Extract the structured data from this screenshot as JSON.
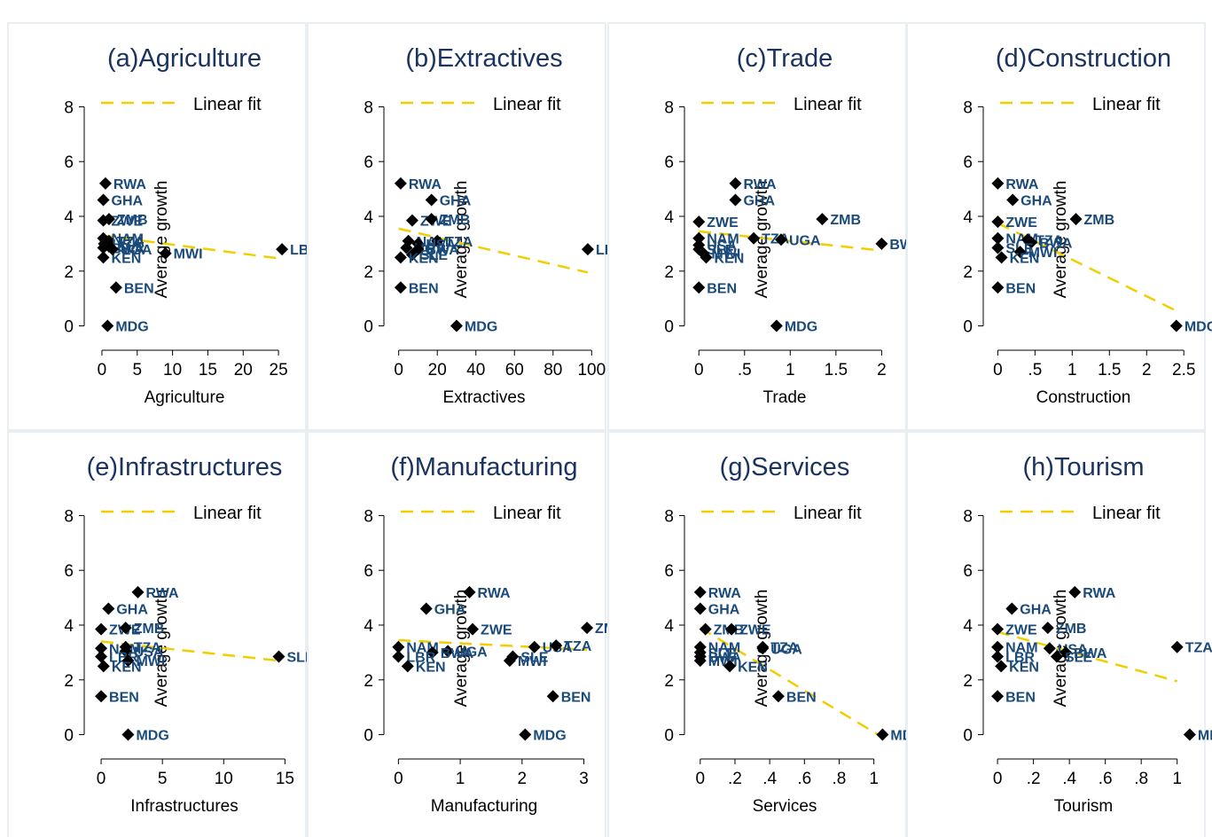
{
  "colors": {
    "marker": "#000000",
    "label": "#1a4a7a",
    "title": "#1a3360",
    "fit": "#f2cd00"
  },
  "chart_data": [
    {
      "type": "scatter",
      "title": "(a)Agriculture",
      "xlabel": "Agriculture",
      "ylabel": "Average growth",
      "xlim": [
        -1.5,
        28
      ],
      "ylim": [
        -0.5,
        8.5
      ],
      "xticks": [
        0,
        5,
        10,
        15,
        20,
        25
      ],
      "xtick_labels": [
        "0",
        "5",
        "10",
        "15",
        "20",
        "25"
      ],
      "yticks": [
        0,
        2,
        4,
        6,
        8
      ],
      "ytick_labels": [
        "0",
        "2",
        "4",
        "6",
        "8"
      ],
      "legend": "Linear fit",
      "fit": [
        [
          0,
          3.3
        ],
        [
          25.5,
          2.45
        ]
      ],
      "points": [
        {
          "x": 0.5,
          "y": 5.2,
          "label": "RWA"
        },
        {
          "x": 0.2,
          "y": 4.6,
          "label": "GHA"
        },
        {
          "x": 0.2,
          "y": 3.85,
          "label": "ZWE"
        },
        {
          "x": 1.0,
          "y": 3.9,
          "label": "ZMB"
        },
        {
          "x": 0.2,
          "y": 3.2,
          "label": "NAM"
        },
        {
          "x": 1.0,
          "y": 3.1,
          "label": "TZA"
        },
        {
          "x": 0.3,
          "y": 3.0,
          "label": "USA"
        },
        {
          "x": 1.0,
          "y": 2.9,
          "label": "SLE"
        },
        {
          "x": 0.2,
          "y": 2.85,
          "label": "BWA"
        },
        {
          "x": 0.2,
          "y": 2.5,
          "label": "KEN"
        },
        {
          "x": 1.5,
          "y": 2.8,
          "label": "UGA"
        },
        {
          "x": 9.0,
          "y": 2.65,
          "label": "MWI"
        },
        {
          "x": 2.0,
          "y": 1.4,
          "label": "BEN"
        },
        {
          "x": 0.8,
          "y": 0.0,
          "label": "MDG"
        },
        {
          "x": 25.5,
          "y": 2.8,
          "label": "LBR"
        }
      ]
    },
    {
      "type": "scatter",
      "title": "(b)Extractives",
      "xlabel": "Extractives",
      "ylabel": "Average growth",
      "xlim": [
        -4,
        104
      ],
      "ylim": [
        -0.5,
        8.5
      ],
      "xticks": [
        0,
        20,
        40,
        60,
        80,
        100
      ],
      "xtick_labels": [
        "0",
        "20",
        "40",
        "60",
        "80",
        "100"
      ],
      "yticks": [
        0,
        2,
        4,
        6,
        8
      ],
      "ytick_labels": [
        "0",
        "2",
        "4",
        "6",
        "8"
      ],
      "legend": "Linear fit",
      "fit": [
        [
          0,
          3.55
        ],
        [
          98,
          1.95
        ]
      ],
      "points": [
        {
          "x": 1.0,
          "y": 5.2,
          "label": "RWA"
        },
        {
          "x": 17,
          "y": 4.6,
          "label": "GHA"
        },
        {
          "x": 7,
          "y": 3.85,
          "label": "ZWE"
        },
        {
          "x": 17,
          "y": 3.9,
          "label": "ZMB"
        },
        {
          "x": 5,
          "y": 3.1,
          "label": "NAM"
        },
        {
          "x": 20,
          "y": 3.1,
          "label": "TZA"
        },
        {
          "x": 10,
          "y": 3.0,
          "label": "USA"
        },
        {
          "x": 4,
          "y": 2.85,
          "label": "UGA"
        },
        {
          "x": 10,
          "y": 2.8,
          "label": "BWA"
        },
        {
          "x": 7,
          "y": 2.6,
          "label": "SLE"
        },
        {
          "x": 1.0,
          "y": 2.5,
          "label": "KEN"
        },
        {
          "x": 1.0,
          "y": 1.4,
          "label": "BEN"
        },
        {
          "x": 30,
          "y": 0.0,
          "label": "MDG"
        },
        {
          "x": 98,
          "y": 2.8,
          "label": "LBR"
        }
      ]
    },
    {
      "type": "scatter",
      "title": "(c)Trade",
      "xlabel": "Trade",
      "ylabel": "Average growth",
      "xlim": [
        -0.08,
        2.2
      ],
      "ylim": [
        -0.5,
        8.5
      ],
      "xticks": [
        0,
        0.5,
        1,
        1.5,
        2
      ],
      "xtick_labels": [
        "0",
        ".5",
        "1",
        "1.5",
        "2"
      ],
      "yticks": [
        0,
        2,
        4,
        6,
        8
      ],
      "ytick_labels": [
        "0",
        "2",
        "4",
        "6",
        "8"
      ],
      "legend": "Linear fit",
      "fit": [
        [
          0,
          3.45
        ],
        [
          2,
          2.75
        ]
      ],
      "points": [
        {
          "x": 0.4,
          "y": 5.2,
          "label": "RWA"
        },
        {
          "x": 0.4,
          "y": 4.6,
          "label": "GHA"
        },
        {
          "x": 0.0,
          "y": 3.8,
          "label": "ZWE"
        },
        {
          "x": 1.35,
          "y": 3.9,
          "label": "ZMB"
        },
        {
          "x": 0.0,
          "y": 3.2,
          "label": "NAM"
        },
        {
          "x": 0.0,
          "y": 2.95,
          "label": "USA"
        },
        {
          "x": 0.0,
          "y": 2.8,
          "label": "SLE"
        },
        {
          "x": 0.05,
          "y": 2.65,
          "label": "MWI"
        },
        {
          "x": 0.08,
          "y": 2.5,
          "label": "KEN"
        },
        {
          "x": 0.6,
          "y": 3.2,
          "label": "TZA"
        },
        {
          "x": 0.9,
          "y": 3.15,
          "label": "UGA"
        },
        {
          "x": 2.0,
          "y": 3.0,
          "label": "BWA"
        },
        {
          "x": 0.0,
          "y": 1.4,
          "label": "BEN"
        },
        {
          "x": 0.85,
          "y": 0.0,
          "label": "MDG"
        }
      ]
    },
    {
      "type": "scatter",
      "title": "(d)Construction",
      "xlabel": "Construction",
      "ylabel": "Average growth",
      "xlim": [
        -0.1,
        2.7
      ],
      "ylim": [
        -0.5,
        8.5
      ],
      "xticks": [
        0,
        0.5,
        1,
        1.5,
        2,
        2.5
      ],
      "xtick_labels": [
        "0",
        ".5",
        "1",
        "1.5",
        "2",
        "2.5"
      ],
      "yticks": [
        0,
        2,
        4,
        6,
        8
      ],
      "ytick_labels": [
        "0",
        "2",
        "4",
        "6",
        "8"
      ],
      "legend": "Linear fit",
      "fit": [
        [
          0,
          3.75
        ],
        [
          2.4,
          0.55
        ]
      ],
      "points": [
        {
          "x": 0.0,
          "y": 5.2,
          "label": "RWA"
        },
        {
          "x": 0.2,
          "y": 4.6,
          "label": "GHA"
        },
        {
          "x": 0.0,
          "y": 3.8,
          "label": "ZWE"
        },
        {
          "x": 1.05,
          "y": 3.9,
          "label": "ZMB"
        },
        {
          "x": 0.0,
          "y": 3.2,
          "label": "NAM"
        },
        {
          "x": 0.4,
          "y": 3.15,
          "label": "TZA"
        },
        {
          "x": 0.45,
          "y": 3.05,
          "label": "BWA"
        },
        {
          "x": 0.0,
          "y": 2.85,
          "label": "SLE"
        },
        {
          "x": 0.3,
          "y": 2.7,
          "label": "MWI"
        },
        {
          "x": 0.05,
          "y": 2.5,
          "label": "KEN"
        },
        {
          "x": 0.0,
          "y": 1.4,
          "label": "BEN"
        },
        {
          "x": 2.4,
          "y": 0.0,
          "label": "MDG"
        }
      ]
    },
    {
      "type": "scatter",
      "title": "(e)Infrastructures",
      "xlabel": "Infrastructures",
      "ylabel": "Average growth",
      "xlim": [
        -0.8,
        16.2
      ],
      "ylim": [
        -0.5,
        8.5
      ],
      "xticks": [
        0,
        5,
        10,
        15
      ],
      "xtick_labels": [
        "0",
        "5",
        "10",
        "15"
      ],
      "yticks": [
        0,
        2,
        4,
        6,
        8
      ],
      "ytick_labels": [
        "0",
        "2",
        "4",
        "6",
        "8"
      ],
      "legend": "Linear fit",
      "fit": [
        [
          0,
          3.4
        ],
        [
          14.5,
          2.7
        ]
      ],
      "points": [
        {
          "x": 3.0,
          "y": 5.2,
          "label": "RWA"
        },
        {
          "x": 0.6,
          "y": 4.6,
          "label": "GHA"
        },
        {
          "x": 0.0,
          "y": 3.85,
          "label": "ZWE"
        },
        {
          "x": 2.0,
          "y": 3.9,
          "label": "ZMB"
        },
        {
          "x": 0.0,
          "y": 3.15,
          "label": "NAM"
        },
        {
          "x": 2.0,
          "y": 3.2,
          "label": "TZA"
        },
        {
          "x": 2.0,
          "y": 3.05,
          "label": "USA"
        },
        {
          "x": 0.0,
          "y": 2.85,
          "label": "LBR"
        },
        {
          "x": 2.2,
          "y": 2.7,
          "label": "MWI"
        },
        {
          "x": 0.2,
          "y": 2.5,
          "label": "KEN"
        },
        {
          "x": 14.5,
          "y": 2.85,
          "label": "SLE"
        },
        {
          "x": 0.0,
          "y": 1.4,
          "label": "BEN"
        },
        {
          "x": 2.2,
          "y": 0.0,
          "label": "MDG"
        }
      ]
    },
    {
      "type": "scatter",
      "title": "(f)Manufacturing",
      "xlabel": "Manufacturing",
      "ylabel": "Average growth",
      "xlim": [
        -0.12,
        3.25
      ],
      "ylim": [
        -0.5,
        8.5
      ],
      "xticks": [
        0,
        1,
        2,
        3
      ],
      "xtick_labels": [
        "0",
        "1",
        "2",
        "3"
      ],
      "yticks": [
        0,
        2,
        4,
        6,
        8
      ],
      "ytick_labels": [
        "0",
        "2",
        "4",
        "6",
        "8"
      ],
      "legend": "Linear fit",
      "fit": [
        [
          0,
          3.45
        ],
        [
          3.05,
          3.1
        ]
      ],
      "points": [
        {
          "x": 1.15,
          "y": 5.2,
          "label": "RWA"
        },
        {
          "x": 0.45,
          "y": 4.6,
          "label": "GHA"
        },
        {
          "x": 1.2,
          "y": 3.85,
          "label": "ZWE"
        },
        {
          "x": 3.05,
          "y": 3.9,
          "label": "ZMB"
        },
        {
          "x": 0.0,
          "y": 3.2,
          "label": "NAM"
        },
        {
          "x": 0.8,
          "y": 3.05,
          "label": "UGA"
        },
        {
          "x": 0.55,
          "y": 3.0,
          "label": "BWA"
        },
        {
          "x": 0.0,
          "y": 2.85,
          "label": "LBR"
        },
        {
          "x": 0.15,
          "y": 2.5,
          "label": "KEN"
        },
        {
          "x": 2.2,
          "y": 3.2,
          "label": "USA"
        },
        {
          "x": 2.55,
          "y": 3.25,
          "label": "TZA"
        },
        {
          "x": 1.85,
          "y": 2.85,
          "label": "SLE"
        },
        {
          "x": 1.8,
          "y": 2.7,
          "label": "MWI"
        },
        {
          "x": 2.5,
          "y": 1.4,
          "label": "BEN"
        },
        {
          "x": 2.05,
          "y": 0.0,
          "label": "MDG"
        }
      ]
    },
    {
      "type": "scatter",
      "title": "(g)Services",
      "xlabel": "Services",
      "ylabel": "Average growth",
      "xlim": [
        -0.05,
        1.15
      ],
      "ylim": [
        -0.5,
        8.5
      ],
      "xticks": [
        0,
        0.2,
        0.4,
        0.6,
        0.8,
        1
      ],
      "xtick_labels": [
        "0",
        ".2",
        ".4",
        ".6",
        ".8",
        "1"
      ],
      "yticks": [
        0,
        2,
        4,
        6,
        8
      ],
      "ytick_labels": [
        "0",
        "2",
        "4",
        "6",
        "8"
      ],
      "legend": "Linear fit",
      "fit": [
        [
          0,
          3.9
        ],
        [
          1.05,
          -0.1
        ]
      ],
      "points": [
        {
          "x": 0.0,
          "y": 5.2,
          "label": "RWA"
        },
        {
          "x": 0.0,
          "y": 4.6,
          "label": "GHA"
        },
        {
          "x": 0.03,
          "y": 3.85,
          "label": "ZMB"
        },
        {
          "x": 0.18,
          "y": 3.85,
          "label": "ZWE"
        },
        {
          "x": 0.0,
          "y": 3.2,
          "label": "NAM"
        },
        {
          "x": 0.0,
          "y": 3.0,
          "label": "SLE"
        },
        {
          "x": 0.0,
          "y": 2.85,
          "label": "BWA"
        },
        {
          "x": 0.0,
          "y": 2.7,
          "label": "MWI"
        },
        {
          "x": 0.17,
          "y": 2.5,
          "label": "KEN"
        },
        {
          "x": 0.36,
          "y": 3.2,
          "label": "TZA"
        },
        {
          "x": 0.36,
          "y": 3.15,
          "label": "UGA"
        },
        {
          "x": 0.45,
          "y": 1.4,
          "label": "BEN"
        },
        {
          "x": 1.05,
          "y": 0.0,
          "label": "MDG"
        }
      ]
    },
    {
      "type": "scatter",
      "title": "(h)Tourism",
      "xlabel": "Tourism",
      "ylabel": "Average growth",
      "xlim": [
        -0.04,
        1.12
      ],
      "ylim": [
        -0.5,
        8.5
      ],
      "xticks": [
        0,
        0.2,
        0.4,
        0.6,
        0.8,
        1
      ],
      "xtick_labels": [
        "0",
        ".2",
        ".4",
        ".6",
        ".8",
        "1"
      ],
      "yticks": [
        0,
        2,
        4,
        6,
        8
      ],
      "ytick_labels": [
        "0",
        "2",
        "4",
        "6",
        "8"
      ],
      "legend": "Linear fit",
      "fit": [
        [
          0,
          3.75
        ],
        [
          1.0,
          1.95
        ]
      ],
      "points": [
        {
          "x": 0.43,
          "y": 5.2,
          "label": "RWA"
        },
        {
          "x": 0.08,
          "y": 4.6,
          "label": "GHA"
        },
        {
          "x": 0.0,
          "y": 3.85,
          "label": "ZWE"
        },
        {
          "x": 0.28,
          "y": 3.9,
          "label": "ZMB"
        },
        {
          "x": 0.0,
          "y": 3.2,
          "label": "NAM"
        },
        {
          "x": 0.29,
          "y": 3.15,
          "label": "USA"
        },
        {
          "x": 0.38,
          "y": 3.0,
          "label": "BWA"
        },
        {
          "x": 0.0,
          "y": 2.85,
          "label": "LBR"
        },
        {
          "x": 0.33,
          "y": 2.85,
          "label": "SLE"
        },
        {
          "x": 0.02,
          "y": 2.5,
          "label": "KEN"
        },
        {
          "x": 1.0,
          "y": 3.2,
          "label": "TZA"
        },
        {
          "x": 0.0,
          "y": 1.4,
          "label": "BEN"
        },
        {
          "x": 1.07,
          "y": 0.0,
          "label": "MDG"
        }
      ]
    }
  ]
}
